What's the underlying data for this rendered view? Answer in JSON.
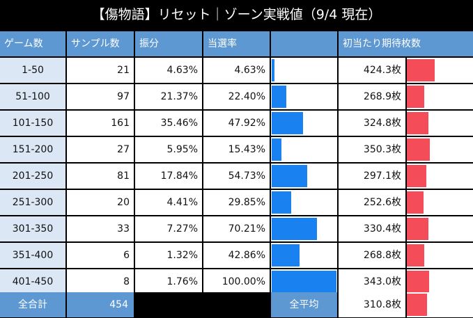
{
  "title": "【傷物語】リセット｜ゾーン実戦値（9/4 現在）",
  "headers": {
    "game": "ゲーム数",
    "samples": "サンプル数",
    "share": "振分",
    "hit_rate": "当選率",
    "expected": "初当たり期待枚数"
  },
  "chart_data": {
    "type": "table",
    "columns": [
      "ゲーム数",
      "サンプル数",
      "振分",
      "当選率",
      "初当たり期待枚数"
    ],
    "rows": [
      {
        "zone": "1-50",
        "samples": "21",
        "share": "4.63%",
        "rate": "4.63%",
        "rate_value": 4.63,
        "coins": "424.3枚",
        "coins_value": 424.3
      },
      {
        "zone": "51-100",
        "samples": "97",
        "share": "21.37%",
        "rate": "22.40%",
        "rate_value": 22.4,
        "coins": "268.9枚",
        "coins_value": 268.9
      },
      {
        "zone": "101-150",
        "samples": "161",
        "share": "35.46%",
        "rate": "47.92%",
        "rate_value": 47.92,
        "coins": "324.8枚",
        "coins_value": 324.8
      },
      {
        "zone": "151-200",
        "samples": "27",
        "share": "5.95%",
        "rate": "15.43%",
        "rate_value": 15.43,
        "coins": "350.3枚",
        "coins_value": 350.3
      },
      {
        "zone": "201-250",
        "samples": "81",
        "share": "17.84%",
        "rate": "54.73%",
        "rate_value": 54.73,
        "coins": "297.1枚",
        "coins_value": 297.1
      },
      {
        "zone": "251-300",
        "samples": "20",
        "share": "4.41%",
        "rate": "29.85%",
        "rate_value": 29.85,
        "coins": "252.6枚",
        "coins_value": 252.6
      },
      {
        "zone": "301-350",
        "samples": "33",
        "share": "7.27%",
        "rate": "70.21%",
        "rate_value": 70.21,
        "coins": "330.4枚",
        "coins_value": 330.4
      },
      {
        "zone": "351-400",
        "samples": "6",
        "share": "1.32%",
        "rate": "42.86%",
        "rate_value": 42.86,
        "coins": "268.8枚",
        "coins_value": 268.8
      },
      {
        "zone": "401-450",
        "samples": "8",
        "share": "1.76%",
        "rate": "100.00%",
        "rate_value": 100.0,
        "coins": "343.0枚",
        "coins_value": 343.0
      }
    ],
    "rate_range": [
      0,
      100
    ],
    "coins_range": [
      0,
      424.3
    ]
  },
  "footer": {
    "total_label": "全合計",
    "total_value": "454",
    "average_label": "全平均",
    "average_value": "310.8枚",
    "average_coins_value": 310.8
  },
  "colors": {
    "header_bg": "#5d98d3",
    "label_bg": "#dbe7f4",
    "rate_bar": "#1a82f0",
    "coins_bar": "#f54c5a"
  }
}
